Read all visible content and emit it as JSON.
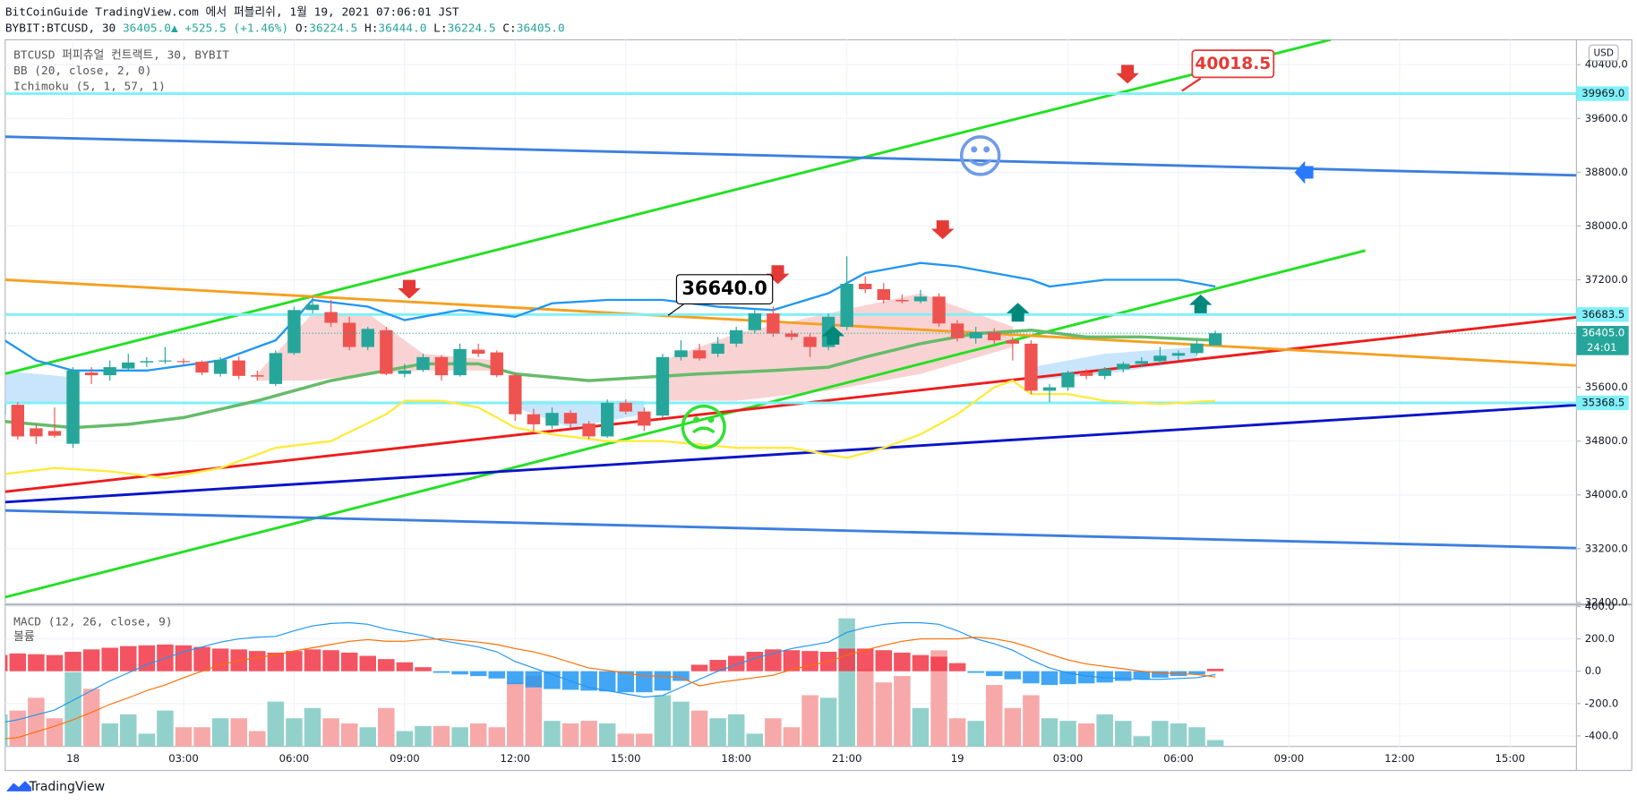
{
  "header": {
    "title": "BitCoinGuide TradingView.com 에서 퍼블리쉬, 1월 19, 2021 07:06:01 JST",
    "symbol": "BYBIT:BTCUSD, 30",
    "change": "36405.0▲ +525.5 (+1.46%)",
    "ohlc": [
      [
        "O:",
        "36224.5"
      ],
      [
        "H:",
        "36444.0"
      ],
      [
        "L:",
        "36224.5"
      ],
      [
        "C:",
        "36405.0"
      ]
    ]
  },
  "footer": "TradingView",
  "chart_data": [
    {
      "type": "candlestick",
      "legend": [
        "BTCUSD 퍼피츄얼 컨트랙트, 30, BYBIT",
        "BB (20, close, 2, 0)",
        "Ichimoku (5, 1, 57, 1)"
      ],
      "currency": "USD",
      "xlim": [
        0.32,
        85.6
      ],
      "xticks": [
        {
          "value": 4,
          "label": "18"
        },
        {
          "value": 10,
          "label": "03:00"
        },
        {
          "value": 16,
          "label": "06:00"
        },
        {
          "value": 22,
          "label": "09:00"
        },
        {
          "value": 28,
          "label": "12:00"
        },
        {
          "value": 34,
          "label": "15:00"
        },
        {
          "value": 40,
          "label": "18:00"
        },
        {
          "value": 46,
          "label": "21:00"
        },
        {
          "value": 52,
          "label": "19"
        },
        {
          "value": 58,
          "label": "03:00"
        },
        {
          "value": 64,
          "label": "06:00"
        },
        {
          "value": 70,
          "label": "09:00"
        },
        {
          "value": 76,
          "label": "12:00"
        },
        {
          "value": 82,
          "label": "15:00"
        }
      ],
      "ylim": [
        32385,
        40770
      ],
      "yticks": [
        {
          "value": 40400,
          "label": "40400.0"
        },
        {
          "value": 39600,
          "label": "39600.0"
        },
        {
          "value": 38800,
          "label": "38800.0"
        },
        {
          "value": 38000,
          "label": "38000.0"
        },
        {
          "value": 37200,
          "label": "37200.0"
        },
        {
          "value": 35600,
          "label": "35600.0"
        },
        {
          "value": 34800,
          "label": "34800.0"
        },
        {
          "value": 34000,
          "label": "34000.0"
        },
        {
          "value": 33200,
          "label": "33200.0"
        },
        {
          "value": 32400,
          "label": "32400.0"
        }
      ],
      "grid": true,
      "up_color": "#26a69a",
      "down_color": "#ef5350",
      "open": [
        35200,
        35340,
        34990,
        34950,
        34760,
        35820,
        35780,
        35880,
        35970,
        35990,
        35990,
        35980,
        35800,
        36000,
        35780,
        35650,
        36110,
        36750,
        36720,
        36560,
        36200,
        36450,
        35800,
        35860,
        36050,
        35780,
        36160,
        36120,
        35780,
        35200,
        35030,
        35220,
        35060,
        34870,
        35370,
        35240,
        35180,
        36050,
        36150,
        36100,
        36250,
        36450,
        36700,
        36400,
        36350,
        36200,
        36500,
        37140,
        37060,
        36900,
        36880,
        36950,
        36550,
        36330,
        36420,
        36300,
        36250,
        35550,
        35600,
        35820,
        35770,
        35870,
        35950,
        35990,
        36070,
        36110,
        36224.5
      ],
      "high": [
        35420,
        35380,
        35050,
        35300,
        35900,
        35900,
        36000,
        36100,
        36050,
        36200,
        36030,
        36000,
        36050,
        36060,
        35850,
        36150,
        36800,
        36950,
        36900,
        36650,
        36500,
        36500,
        35950,
        36100,
        36080,
        36250,
        36250,
        36150,
        35820,
        35280,
        35300,
        35260,
        35100,
        35420,
        35420,
        35300,
        36100,
        36300,
        36250,
        36350,
        36500,
        36750,
        36800,
        36450,
        36400,
        36700,
        37550,
        37250,
        37150,
        36980,
        37050,
        37000,
        36600,
        36500,
        36480,
        36350,
        36300,
        35650,
        35850,
        35870,
        35900,
        35980,
        36050,
        36200,
        36150,
        36300,
        36444
      ],
      "low": [
        35150,
        34820,
        34760,
        34850,
        34700,
        35650,
        35700,
        35850,
        35900,
        35950,
        35940,
        35780,
        35760,
        35720,
        35700,
        35620,
        36080,
        36700,
        36500,
        36150,
        36150,
        35780,
        35750,
        35830,
        35700,
        35760,
        36050,
        35750,
        35100,
        34950,
        34980,
        35000,
        34830,
        34850,
        35200,
        34950,
        35150,
        36000,
        36000,
        36050,
        36200,
        36400,
        36350,
        36300,
        36050,
        36150,
        36450,
        37000,
        36850,
        36850,
        36850,
        36500,
        36280,
        36250,
        36250,
        36000,
        35500,
        35380,
        35550,
        35720,
        35720,
        35820,
        35900,
        35950,
        36000,
        36080,
        36224.5
      ],
      "close": [
        35350,
        34870,
        34870,
        34880,
        35850,
        35780,
        35900,
        35970,
        35990,
        36000,
        35980,
        35820,
        36010,
        35770,
        35760,
        36110,
        36750,
        36830,
        36560,
        36200,
        36470,
        35800,
        35850,
        36050,
        35780,
        36170,
        36100,
        35780,
        35200,
        35050,
        35220,
        35060,
        34870,
        35370,
        35240,
        35030,
        36050,
        36150,
        36030,
        36250,
        36450,
        36700,
        36400,
        36350,
        36200,
        36650,
        37140,
        37060,
        36900,
        36880,
        36950,
        36550,
        36330,
        36420,
        36300,
        36250,
        35550,
        35600,
        35820,
        35770,
        35870,
        35950,
        35990,
        36070,
        36110,
        36250,
        36405
      ],
      "overlays": [
        {
          "color": "#2196f3",
          "x": [
            0,
            2,
            4,
            8,
            12,
            15,
            17,
            20,
            22,
            25,
            28,
            30,
            33,
            36,
            39,
            42,
            45,
            47,
            50,
            52,
            54,
            56,
            57,
            60,
            64,
            66
          ],
          "values": [
            36350,
            36000,
            35850,
            35850,
            36000,
            36300,
            36900,
            36800,
            36600,
            36750,
            36650,
            36850,
            36900,
            36900,
            36800,
            36750,
            37000,
            37300,
            37450,
            37400,
            37300,
            37200,
            37100,
            37200,
            37200,
            37100
          ]
        },
        {
          "color": "#ffeb3b",
          "x": [
            0,
            3,
            6,
            9,
            12,
            15,
            18,
            21,
            22,
            24,
            26,
            28,
            30,
            33,
            36,
            40,
            43,
            46,
            48,
            50,
            52,
            54,
            55,
            56,
            58,
            60,
            63,
            66
          ],
          "values": [
            34300,
            34400,
            34350,
            34250,
            34400,
            34700,
            34800,
            35200,
            35400,
            35400,
            35300,
            35000,
            34900,
            34800,
            34800,
            34700,
            34700,
            34550,
            34700,
            34900,
            35200,
            35600,
            35700,
            35500,
            35500,
            35400,
            35350,
            35400
          ]
        },
        {
          "color": "#66bb6a",
          "x": [
            0,
            4,
            7,
            10,
            14,
            18,
            21,
            23,
            26,
            28,
            32,
            35,
            38,
            42,
            45,
            47,
            50,
            53,
            56,
            59,
            62,
            66
          ],
          "values": [
            35100,
            35000,
            35050,
            35150,
            35400,
            35700,
            35850,
            35950,
            35950,
            35800,
            35700,
            35750,
            35800,
            35850,
            35900,
            36050,
            36250,
            36400,
            36450,
            36350,
            36350,
            36300
          ]
        }
      ],
      "clouds": [
        {
          "color": "#bbdefb",
          "x": [
            0,
            2,
            4
          ],
          "upper": [
            35850,
            35800,
            35750
          ],
          "lower": [
            35380,
            35350,
            35400
          ]
        },
        {
          "color": "#f8c8c8",
          "x": [
            14,
            17,
            20,
            23,
            27
          ],
          "upper": [
            35800,
            36700,
            36700,
            36100,
            36000
          ],
          "lower": [
            35700,
            35700,
            35800,
            35850,
            35850
          ]
        },
        {
          "color": "#bbdefb",
          "x": [
            28,
            31,
            35
          ],
          "upper": [
            35400,
            35400,
            35400
          ],
          "lower": [
            35300,
            35000,
            35200
          ]
        },
        {
          "color": "#f8c8c8",
          "x": [
            36,
            40,
            45,
            50,
            55
          ],
          "upper": [
            36000,
            36400,
            36700,
            37000,
            36500
          ],
          "lower": [
            35400,
            35400,
            35550,
            35800,
            36200
          ]
        },
        {
          "color": "#bbdefb",
          "x": [
            56,
            60,
            65
          ],
          "upper": [
            35900,
            36100,
            36200
          ],
          "lower": [
            35700,
            35800,
            36000
          ]
        }
      ],
      "trendlines": [
        {
          "color": "#22e022",
          "x": [
            0.32,
            72.27
          ],
          "values": [
            35802,
            40773
          ]
        },
        {
          "color": "#22e022",
          "x": [
            0.32,
            74.14
          ],
          "values": [
            32478,
            37635
          ]
        },
        {
          "color": "#3d7fe0",
          "x": [
            0.32,
            85.58
          ],
          "values": [
            39328,
            38754
          ]
        },
        {
          "color": "#3d7fe0",
          "x": [
            0.32,
            85.58
          ],
          "values": [
            33768,
            33208
          ]
        },
        {
          "color": "#0a14c8",
          "x": [
            0.32,
            85.58
          ],
          "values": [
            33892,
            35336
          ]
        },
        {
          "color": "#ee1c1c",
          "x": [
            0.32,
            85.58
          ],
          "values": [
            34047,
            36641
          ]
        },
        {
          "color": "#f5a020",
          "x": [
            0.32,
            85.58
          ],
          "values": [
            37200,
            35926
          ]
        }
      ],
      "price_lines_color": "#7ff0f8",
      "price_lines": [
        {
          "value": 39969,
          "label": "39969.0"
        },
        {
          "value": 36683.5,
          "label": "36683.5"
        },
        {
          "value": 35368.5,
          "label": "35368.5"
        }
      ],
      "last_price": {
        "value": 36405,
        "label": "36405.0",
        "countdown": "24:01"
      },
      "callouts": [
        "36640.0",
        "40018.5"
      ]
    },
    {
      "type": "macd",
      "legend": [
        "MACD (12, 26, close, 9)",
        "볼륨"
      ],
      "ylim": [
        -465,
        406
      ],
      "yticks": [
        {
          "value": 400,
          "label": "400.0"
        },
        {
          "value": 200,
          "label": "200.0"
        },
        {
          "value": 0,
          "label": "0.0"
        },
        {
          "value": -200,
          "label": "-200.0"
        },
        {
          "value": -400,
          "label": "-400.0"
        }
      ],
      "pos_color": "#f23645",
      "neg_color": "#2196f3",
      "histogram": [
        100,
        110,
        105,
        100,
        120,
        135,
        145,
        155,
        160,
        165,
        160,
        150,
        140,
        135,
        125,
        115,
        125,
        135,
        130,
        115,
        95,
        75,
        55,
        25,
        -10,
        -20,
        -30,
        -45,
        -80,
        -100,
        -110,
        -115,
        -120,
        -125,
        -130,
        -130,
        -120,
        -60,
        40,
        70,
        95,
        120,
        135,
        130,
        125,
        120,
        140,
        140,
        130,
        115,
        100,
        90,
        50,
        -10,
        -30,
        -50,
        -75,
        -85,
        -80,
        -75,
        -70,
        -60,
        -50,
        -40,
        -30,
        -20,
        15
      ],
      "macd": {
        "color": "#2196f3",
        "values": [
          -320,
          -300,
          -270,
          -240,
          -180,
          -120,
          -60,
          -10,
          40,
          80,
          120,
          150,
          180,
          200,
          210,
          215,
          250,
          280,
          295,
          300,
          290,
          260,
          240,
          220,
          190,
          170,
          150,
          120,
          60,
          20,
          -20,
          -60,
          -100,
          -120,
          -140,
          -160,
          -150,
          -100,
          -50,
          0,
          40,
          80,
          110,
          140,
          160,
          180,
          240,
          270,
          290,
          300,
          300,
          290,
          250,
          200,
          170,
          130,
          70,
          20,
          -10,
          -30,
          -40,
          -45,
          -50,
          -50,
          -45,
          -40,
          -20
        ]
      },
      "signal": {
        "color": "#ff6d00",
        "values": [
          -420,
          -410,
          -375,
          -340,
          -300,
          -255,
          -205,
          -165,
          -120,
          -85,
          -40,
          0,
          40,
          65,
          85,
          100,
          125,
          145,
          165,
          185,
          195,
          185,
          185,
          195,
          200,
          190,
          180,
          165,
          140,
          120,
          90,
          55,
          20,
          5,
          -10,
          -30,
          -30,
          -40,
          -90,
          -70,
          -55,
          -40,
          -25,
          10,
          35,
          60,
          100,
          130,
          160,
          185,
          200,
          200,
          200,
          210,
          200,
          180,
          145,
          105,
          70,
          45,
          30,
          15,
          0,
          -10,
          -15,
          -20,
          -35
        ]
      },
      "vlim": [
        0,
        110
      ],
      "volume_up_color": "#92d1cb",
      "volume_down_color": "#f7a9a9",
      "volume": [
        25,
        28,
        38,
        22,
        58,
        45,
        18,
        25,
        10,
        28,
        15,
        15,
        22,
        22,
        12,
        35,
        22,
        30,
        22,
        18,
        15,
        30,
        12,
        16,
        16,
        15,
        18,
        15,
        50,
        55,
        20,
        18,
        20,
        18,
        10,
        10,
        40,
        35,
        28,
        22,
        25,
        10,
        22,
        15,
        40,
        38,
        100,
        60,
        50,
        55,
        30,
        75,
        22,
        20,
        48,
        30,
        40,
        22,
        20,
        18,
        25,
        20,
        8,
        20,
        18,
        15,
        5
      ]
    }
  ]
}
